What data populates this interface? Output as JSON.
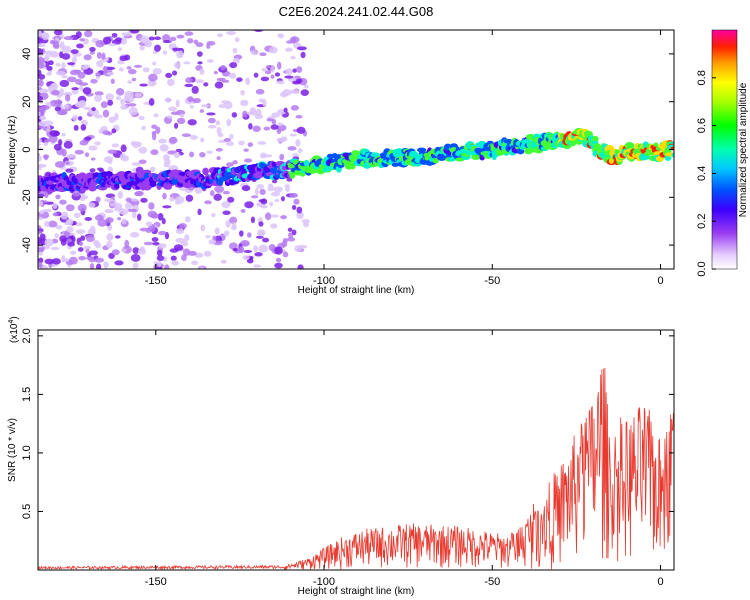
{
  "title": "C2E6.2024.241.02.44.G08",
  "chart_data": [
    {
      "type": "heatmap",
      "xlabel": "Height of straight line (km)",
      "ylabel": "Frequency (Hz)",
      "xlim": [
        -185,
        4
      ],
      "ylim": [
        -50,
        50
      ],
      "xticks": [
        -150,
        -100,
        -50,
        0
      ],
      "yticks": [
        -40,
        -20,
        0,
        20,
        40
      ],
      "colorbar": {
        "label": "Normalized spectral amplitude",
        "range": [
          0,
          1
        ],
        "ticks": [
          0.0,
          0.2,
          0.4,
          0.6,
          0.8
        ]
      },
      "ridge": [
        {
          "x": -185,
          "y": -14
        },
        {
          "x": -135,
          "y": -12
        },
        {
          "x": -110,
          "y": -8
        },
        {
          "x": -90,
          "y": -4
        },
        {
          "x": -70,
          "y": -3
        },
        {
          "x": -50,
          "y": 0
        },
        {
          "x": -30,
          "y": 4
        },
        {
          "x": -22,
          "y": 5
        },
        {
          "x": -18,
          "y": 0
        },
        {
          "x": -14,
          "y": -3
        },
        {
          "x": -10,
          "y": -1
        },
        {
          "x": 0,
          "y": -1
        },
        {
          "x": 4,
          "y": 0
        }
      ]
    },
    {
      "type": "line",
      "xlabel": "Height of straight line (km)",
      "ylabel": "SNR (10 * v/v)",
      "y_multiplier": "(x10",
      "y_multiplier_exp": "4",
      "y_multiplier_close": ")",
      "xlim": [
        -185,
        4
      ],
      "ylim": [
        0,
        2.05
      ],
      "xticks": [
        -150,
        -100,
        -50,
        0
      ],
      "yticks": [
        0.5,
        1.0,
        1.5,
        2.0
      ],
      "ytick_labels": [
        "0.5",
        "1.0",
        "1.5",
        "2.0"
      ],
      "color": "#e8392f",
      "envelope": [
        {
          "x": -185,
          "y": 0.03
        },
        {
          "x": -112,
          "y": 0.04
        },
        {
          "x": -105,
          "y": 0.1
        },
        {
          "x": -95,
          "y": 0.28
        },
        {
          "x": -88,
          "y": 0.35
        },
        {
          "x": -75,
          "y": 0.4
        },
        {
          "x": -60,
          "y": 0.38
        },
        {
          "x": -45,
          "y": 0.3
        },
        {
          "x": -40,
          "y": 0.45
        },
        {
          "x": -35,
          "y": 0.7
        },
        {
          "x": -30,
          "y": 0.9
        },
        {
          "x": -25,
          "y": 1.2
        },
        {
          "x": -20,
          "y": 1.5
        },
        {
          "x": -17,
          "y": 1.95
        },
        {
          "x": -15,
          "y": 1.1
        },
        {
          "x": -13,
          "y": 1.25
        },
        {
          "x": -10,
          "y": 1.3
        },
        {
          "x": -5,
          "y": 1.45
        },
        {
          "x": -2,
          "y": 1.3
        },
        {
          "x": 0,
          "y": 1.1
        },
        {
          "x": 3,
          "y": 1.45
        },
        {
          "x": 4,
          "y": 1.5
        }
      ]
    }
  ]
}
